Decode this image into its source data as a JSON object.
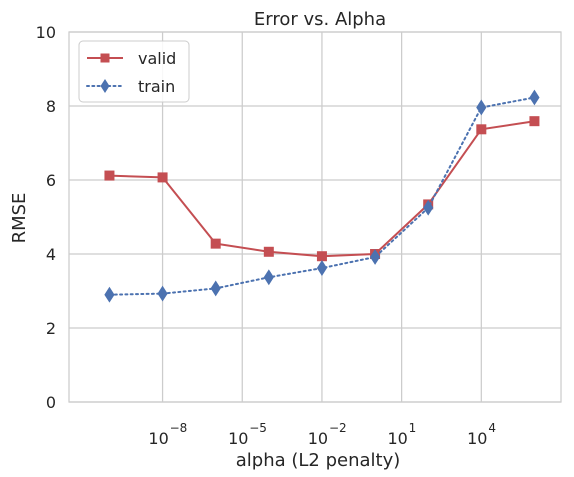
{
  "chart_data": {
    "type": "line",
    "title": "Error vs. Alpha",
    "xlabel": "alpha (L2 penalty)",
    "ylabel": "RMSE",
    "x_scale": "log",
    "x_ticks": [
      {
        "value": 1e-08,
        "base": "10",
        "exp": "−8"
      },
      {
        "value": 1e-05,
        "base": "10",
        "exp": "−5"
      },
      {
        "value": 0.01,
        "base": "10",
        "exp": "−2"
      },
      {
        "value": 10,
        "base": "10",
        "exp": "1"
      },
      {
        "value": 10000,
        "base": "10",
        "exp": "4"
      }
    ],
    "y_ticks": [
      {
        "value": 0,
        "label": "0"
      },
      {
        "value": 2,
        "label": "2"
      },
      {
        "value": 4,
        "label": "4"
      },
      {
        "value": 6,
        "label": "6"
      },
      {
        "value": 8,
        "label": "8"
      },
      {
        "value": 10,
        "label": "10"
      }
    ],
    "xlim": [
      3e-12,
      10000000.0
    ],
    "ylim": [
      0,
      10
    ],
    "grid": true,
    "legend_position": "top-left",
    "x": [
      1e-10,
      1e-08,
      1e-06,
      0.0001,
      0.01,
      1,
      100,
      10000,
      1000000
    ],
    "series": [
      {
        "name": "valid",
        "color": "#c44e52",
        "linestyle": "solid",
        "marker": "square",
        "values": [
          6.12,
          6.07,
          4.28,
          4.06,
          3.94,
          4.0,
          5.34,
          7.37,
          7.59
        ]
      },
      {
        "name": "train",
        "color": "#4c72b0",
        "linestyle": "dotted",
        "marker": "diamond",
        "values": [
          2.9,
          2.93,
          3.07,
          3.37,
          3.62,
          3.92,
          5.25,
          7.96,
          8.23
        ]
      }
    ]
  }
}
